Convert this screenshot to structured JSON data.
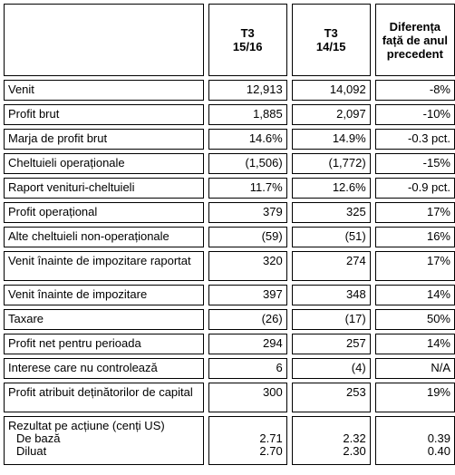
{
  "header": {
    "col1": [
      "T3",
      "15/16"
    ],
    "col2": [
      "T3",
      "14/15"
    ],
    "col3": [
      "Diferența",
      "față de anul",
      "precedent"
    ]
  },
  "rows": [
    {
      "label": "Venit",
      "v1": "12,913",
      "v2": "14,092",
      "v3": "-8%"
    },
    {
      "label": "Profit brut",
      "v1": "1,885",
      "v2": "2,097",
      "v3": "-10%"
    },
    {
      "label": "Marja de profit brut",
      "v1": "14.6%",
      "v2": "14.9%",
      "v3": "-0.3 pct."
    },
    {
      "label": "Cheltuieli operaționale",
      "v1": "(1,506)",
      "v2": "(1,772)",
      "v3": "-15%"
    },
    {
      "label": "Raport venituri-cheltuieli",
      "v1": "11.7%",
      "v2": "12.6%",
      "v3": "-0.9 pct."
    },
    {
      "label": "Profit operațional",
      "v1": "379",
      "v2": "325",
      "v3": "17%"
    },
    {
      "label": "Alte cheltuieli non-operaționale",
      "v1": "(59)",
      "v2": "(51)",
      "v3": "16%"
    },
    {
      "label": "Venit înainte de impozitare raportat",
      "v1": "320",
      "v2": "274",
      "v3": "17%"
    },
    {
      "label": "Venit înainte de impozitare",
      "v1": "397",
      "v2": "348",
      "v3": "14%"
    },
    {
      "label": "Taxare",
      "v1": "(26)",
      "v2": "(17)",
      "v3": "50%"
    },
    {
      "label": "Profit net pentru perioada",
      "v1": "294",
      "v2": "257",
      "v3": "14%"
    },
    {
      "label": "Interese care nu controlează",
      "v1": "6",
      "v2": "(4)",
      "v3": "N/A"
    },
    {
      "label": "Profit atribuit deținătorilor de capital",
      "v1": "300",
      "v2": "253",
      "v3": "19%"
    }
  ],
  "eps": {
    "label": "Rezultat pe acțiune (cenți US)",
    "basic": {
      "label": "De bază",
      "v1": "2.71",
      "v2": "2.32",
      "v3": "0.39"
    },
    "diluted": {
      "label": "Diluat",
      "v1": "2.70",
      "v2": "2.30",
      "v3": "0.40"
    }
  }
}
